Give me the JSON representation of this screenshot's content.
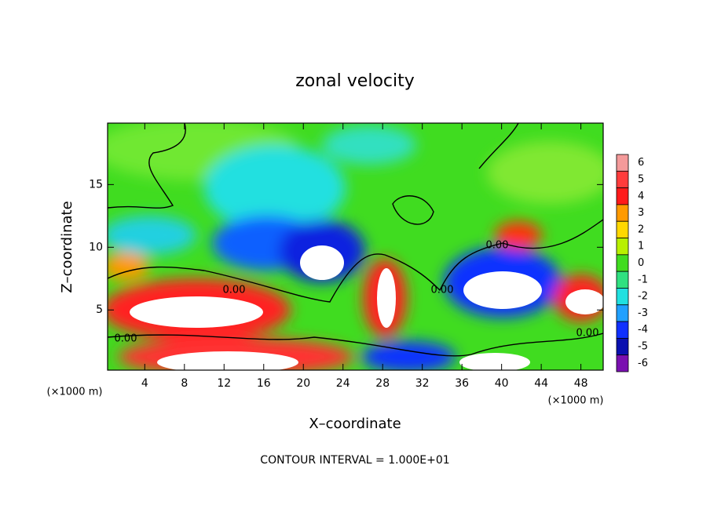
{
  "chart_data": {
    "type": "contour",
    "title": "zonal velocity",
    "xlabel": "X–coordinate",
    "ylabel": "Z–coordinate",
    "x_unit_label": "(×1000 m)",
    "y_unit_label": "(×1000 m)",
    "footer": "CONTOUR INTERVAL = 1.000E+01",
    "xlim": [
      0.25,
      50.25
    ],
    "xticks": [
      4,
      8,
      12,
      16,
      20,
      24,
      28,
      32,
      36,
      40,
      44,
      48
    ],
    "ylim": [
      0.2,
      19.9
    ],
    "yticks": [
      5,
      10,
      15
    ],
    "contour_labels": [
      "0.00",
      "0.00",
      "0.00",
      "0.00",
      "0.00"
    ],
    "colorbar": {
      "levels": [
        6,
        5,
        4,
        3,
        2,
        1,
        0,
        -1,
        -2,
        -3,
        -4,
        -5,
        -6
      ],
      "colors": [
        "#f49a9a",
        "#ff3c3c",
        "#ff1a1a",
        "#ff9a00",
        "#ffd800",
        "#b8f000",
        "#40dc20",
        "#30e080",
        "#20e0e0",
        "#20a0ff",
        "#1030ff",
        "#0a10b0",
        "#7a10b0"
      ]
    }
  }
}
